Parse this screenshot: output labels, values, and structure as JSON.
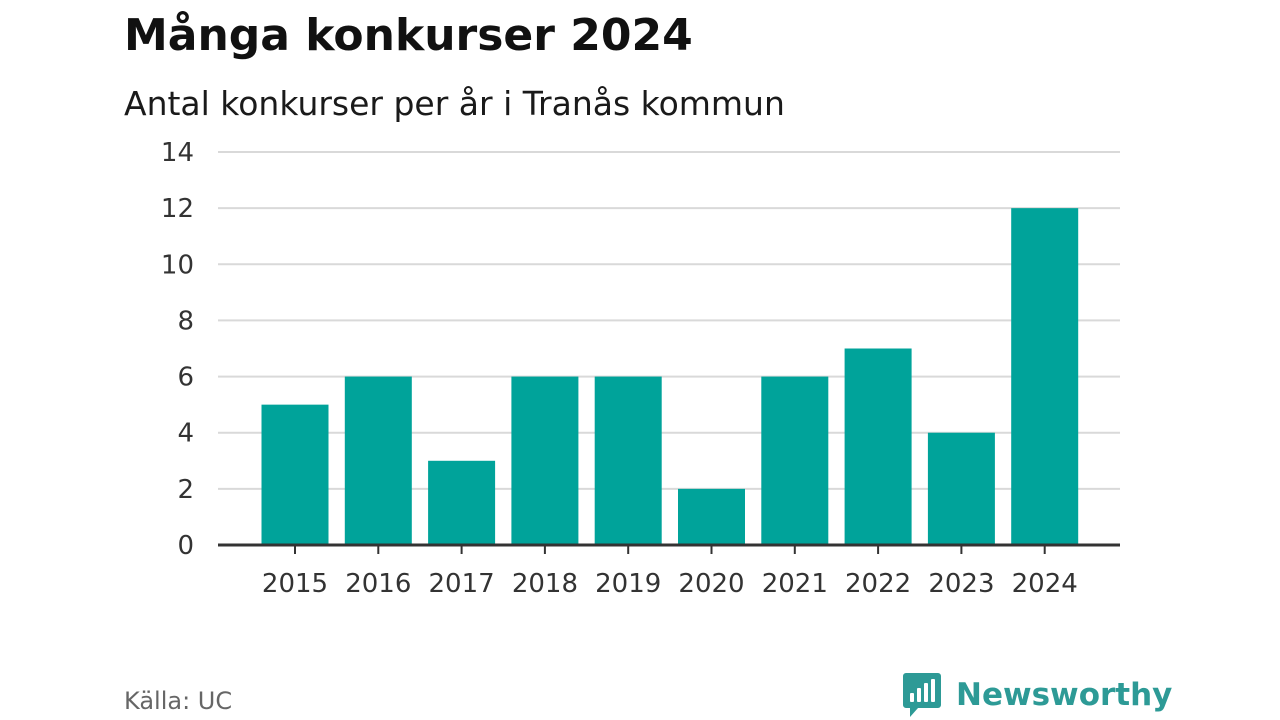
{
  "title": "Många konkurser 2024",
  "subtitle": "Antal konkurser per år i Tranås kommun",
  "source": "Källa: UC",
  "brand": "Newsworthy",
  "colors": {
    "bar": "#00a39a",
    "grid": "#d9d9d9",
    "axis": "#333333",
    "brand": "#2d9a96"
  },
  "chart_data": {
    "type": "bar",
    "categories": [
      "2015",
      "2016",
      "2017",
      "2018",
      "2019",
      "2020",
      "2021",
      "2022",
      "2023",
      "2024"
    ],
    "values": [
      5,
      6,
      3,
      6,
      6,
      2,
      6,
      7,
      4,
      12
    ],
    "ylim": [
      0,
      14
    ],
    "yticks": [
      0,
      2,
      4,
      6,
      8,
      10,
      12,
      14
    ],
    "grid": true
  }
}
